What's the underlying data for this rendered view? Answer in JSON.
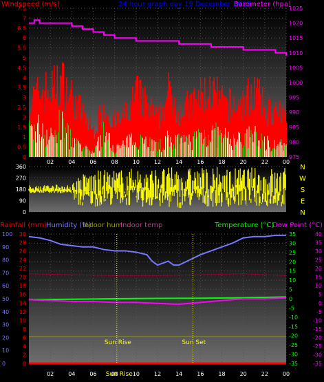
{
  "panel1": {
    "title": "24 hour graph day  19 December 2013",
    "left_label": "Windspeed (m/s)",
    "right_label": "Barometer (hpa)",
    "colors": {
      "wind": "#ff0000",
      "gust_avg": "#00dd00",
      "wind_avg": "#ffffcc",
      "baro": "#ff00ff",
      "left_text": "#ff0000",
      "right_text": "#ff00ff",
      "title": "#0000ff"
    }
  },
  "panel3": {
    "labels": {
      "rainfall": "Rainfall (mm)",
      "humidity": "Humidity (%)",
      "indoor_hum": "Indoor hum",
      "indoor_temp": "Indoor temp",
      "temperature": "Temperature (°C)",
      "dew_point": "Dew Point (°C)"
    },
    "sun_rise": "Sun Rise",
    "sun_set": "Sun Set",
    "bottom_label": "Sun Rise",
    "colors": {
      "humidity": "#7777ff",
      "indoor_temp": "#990033",
      "indoor_hum": "#999900",
      "temperature": "#00ff00",
      "dew_point": "#ff00ff",
      "rain": "#ff0000"
    }
  },
  "chart_data": [
    {
      "type": "area",
      "title": "24 hour graph day  19 December 2013",
      "ylabel": "Windspeed (m/s)",
      "y2label": "Barometer (hpa)",
      "x_ticks": [
        "02",
        "04",
        "06",
        "08",
        "10",
        "12",
        "14",
        "16",
        "18",
        "20",
        "22",
        "00"
      ],
      "ylim": [
        0,
        7.5
      ],
      "y_ticks": [
        "0",
        "0.5",
        "1",
        "1.5",
        "2",
        "2.5",
        "3",
        "3.5",
        "4",
        "4.5",
        "5",
        "5.5",
        "6",
        "6.5",
        "7",
        "7.5"
      ],
      "y2lim": [
        975,
        1025
      ],
      "y2_ticks": [
        "975",
        "980",
        "985",
        "990",
        "995",
        "1000",
        "1005",
        "1010",
        "1015",
        "1020",
        "1025"
      ],
      "series": [
        {
          "name": "Barometer",
          "x": [
            0,
            0.5,
            1,
            1.5,
            2,
            3,
            4,
            5,
            6,
            7,
            8,
            9,
            10,
            11,
            12,
            13,
            14,
            15,
            16,
            17,
            18,
            19,
            20,
            21,
            22,
            23,
            23.5,
            24
          ],
          "values": [
            1020,
            1021,
            1020,
            1020,
            1020,
            1020,
            1019,
            1018,
            1017,
            1016,
            1015,
            1015,
            1014,
            1014,
            1014,
            1014,
            1013,
            1013,
            1013,
            1012,
            1012,
            1012,
            1011,
            1011,
            1011,
            1010,
            1010,
            1009
          ]
        }
      ],
      "wind_envelope": {
        "x": [
          0,
          1,
          2,
          3,
          4,
          5,
          6,
          7,
          8,
          9,
          10,
          11,
          12,
          13,
          14,
          15,
          16,
          17,
          18,
          19,
          20,
          21,
          22,
          23,
          24
        ],
        "gust": [
          3.2,
          3.8,
          4.0,
          4.5,
          3.5,
          2.5,
          1.5,
          3.0,
          2.0,
          2.5,
          3.8,
          3.0,
          2.2,
          3.8,
          2.8,
          3.0,
          3.6,
          3.9,
          3.2,
          3.0,
          3.2,
          4.0,
          2.8,
          2.6,
          2.4
        ],
        "avg": [
          1.5,
          1.8,
          1.2,
          2.0,
          1.0,
          0.5,
          0.3,
          1.5,
          0.5,
          0.8,
          1.2,
          1.0,
          0.6,
          1.1,
          0.9,
          1.0,
          1.4,
          1.5,
          1.2,
          1.0,
          1.1,
          1.3,
          0.9,
          0.8,
          0.6
        ]
      }
    },
    {
      "type": "scatter",
      "ylabel": "Wind direction",
      "y_ticks": [
        "0",
        "90",
        "180",
        "270",
        "360"
      ],
      "ylim": [
        0,
        360
      ],
      "dir_labels": [
        "N",
        "W",
        "S",
        "E",
        "N"
      ],
      "x_ticks": [
        "02",
        "04",
        "06",
        "08",
        "10",
        "12",
        "14",
        "16",
        "18",
        "20",
        "22",
        "00"
      ],
      "band": {
        "x": [
          0,
          2,
          4,
          4.5,
          6,
          8,
          10,
          12,
          14,
          16,
          18,
          20,
          22,
          24
        ],
        "lo": [
          150,
          150,
          140,
          40,
          40,
          60,
          40,
          30,
          30,
          40,
          40,
          40,
          40,
          40
        ],
        "hi": [
          200,
          210,
          220,
          300,
          330,
          340,
          350,
          355,
          355,
          355,
          355,
          355,
          355,
          355
        ]
      }
    },
    {
      "type": "line",
      "x_ticks": [
        "02",
        "04",
        "06",
        "08",
        "10",
        "12",
        "14",
        "16",
        "18",
        "20",
        "22",
        "00"
      ],
      "ylim_left": [
        0,
        100
      ],
      "y_ticks_left": [
        "0",
        "5",
        "10",
        "15",
        "20",
        "25",
        "30",
        "35",
        "40",
        "45",
        "50",
        "55",
        "60",
        "65",
        "70",
        "75",
        "80",
        "85",
        "90",
        "95",
        "100"
      ],
      "y_ticks_rain": [
        "0",
        "2",
        "4",
        "6",
        "8",
        "10",
        "12",
        "14",
        "16",
        "18",
        "20",
        "22",
        "24",
        "26",
        "28",
        "30"
      ],
      "ylim_temp": [
        -35,
        35
      ],
      "y_ticks_temp": [
        "-35",
        "-30",
        "-25",
        "-20",
        "-15",
        "-10",
        "-5",
        "0",
        "5",
        "10",
        "15",
        "20",
        "25",
        "30",
        "35"
      ],
      "ylim_dew": [
        -35,
        40
      ],
      "y_ticks_dew": [
        "-35",
        "-30",
        "-25",
        "-20",
        "-15",
        "-10",
        "-5",
        "0",
        "5",
        "10",
        "15",
        "20",
        "25",
        "30",
        "35",
        "40"
      ],
      "series": [
        {
          "name": "Humidity (%)",
          "axis": "left",
          "x": [
            0,
            1,
            2,
            3,
            4,
            5,
            6,
            7,
            8,
            9,
            10,
            11,
            11.5,
            12,
            13,
            13.5,
            14,
            15,
            16,
            17,
            18,
            19,
            20,
            21,
            22,
            23,
            24
          ],
          "values": [
            98,
            97,
            95,
            92,
            91,
            90,
            90,
            88,
            87,
            87,
            86,
            84,
            79,
            76,
            79,
            76,
            76,
            80,
            84,
            87,
            90,
            93,
            97,
            98,
            98,
            99,
            99
          ]
        },
        {
          "name": "Indoor temp",
          "axis": "temp",
          "x": [
            0,
            4,
            8,
            12,
            16,
            20,
            24
          ],
          "values": [
            13.5,
            13,
            12.5,
            12.5,
            13,
            13.5,
            12.5
          ]
        },
        {
          "name": "Indoor hum",
          "axis": "temp",
          "x": [
            0,
            24
          ],
          "values": [
            -20.5,
            -20.5
          ]
        },
        {
          "name": "Temperature (°C)",
          "axis": "temp",
          "x": [
            0,
            4,
            8,
            12,
            16,
            20,
            24
          ],
          "values": [
            -0.5,
            -0.3,
            0,
            0.2,
            0.3,
            0.5,
            1
          ]
        },
        {
          "name": "Dew Point (°C)",
          "axis": "temp",
          "x": [
            0,
            2,
            4,
            6,
            8,
            10,
            12,
            14,
            16,
            18,
            20,
            22,
            24
          ],
          "values": [
            -0.5,
            -1,
            -1.5,
            -1.5,
            -2,
            -2,
            -2.5,
            -3,
            -2,
            -1,
            0,
            0,
            0.5
          ]
        },
        {
          "name": "Rainfall (mm)",
          "axis": "rain",
          "x": [
            0,
            24
          ],
          "values": [
            0,
            0
          ]
        }
      ],
      "sun_rise_x": 8.2,
      "sun_set_x": 15.3
    }
  ]
}
